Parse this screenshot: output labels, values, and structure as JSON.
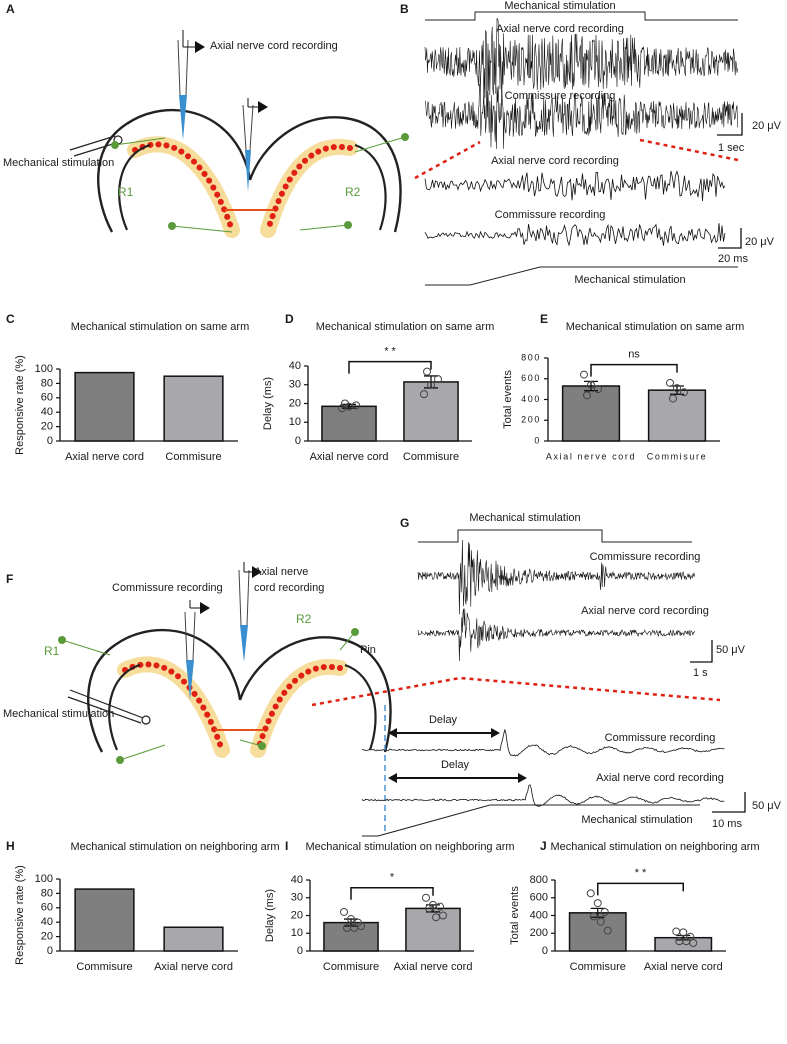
{
  "panel_A": {
    "letter": "A",
    "recording": "Axial nerve cord recording",
    "stimulation": "Mechanical stimulation",
    "arm_left": "R1",
    "arm_right": "R2"
  },
  "panel_B": {
    "letter": "B",
    "stimulation_top": "Mechanical stimulation",
    "axial": "Axial nerve cord recording",
    "commissure": "Commissure recording",
    "scale_v": "20 μV",
    "scale_t": "1 sec",
    "zoom_axial": "Axial nerve cord recording",
    "zoom_commissure": "Commissure recording",
    "zoom_scale_v": "20 μV",
    "zoom_scale_t": "20 ms",
    "stimulation_bottom": "Mechanical stimulation"
  },
  "panel_F": {
    "letter": "F",
    "commissure_recording": "Commissure recording",
    "axial_recording": [
      "Axial nerve",
      "cord recording"
    ],
    "arm_left": "R1",
    "arm_right": "R2",
    "pin": "Pin",
    "stimulation": "Mechanical stimulation"
  },
  "panel_G": {
    "letter": "G",
    "stimulation_top": "Mechanical stimulation",
    "commissure": "Commissure recording",
    "axial": "Axial nerve cord recording",
    "scale_v": "50 μV",
    "scale_t": "1 s",
    "delay_1": "Delay",
    "delay_2": "Delay",
    "zoom_commissure": "Commissure recording",
    "zoom_axial": "Axial nerve cord recording",
    "zoom_scale_v": "50 μV",
    "zoom_scale_t": "10 ms",
    "stimulation_bottom": "Mechanical stimulation"
  },
  "chart_data": [
    {
      "type": "bar",
      "letter": "C",
      "title": "Mechanical stimulation on same arm",
      "ylabel": "Responsive rate (%)",
      "categories": [
        "Axial nerve cord",
        "Commisure"
      ],
      "values": [
        95,
        90
      ],
      "colors": [
        "#7f7f7f",
        "#a8a8ac"
      ],
      "ylim": [
        0,
        100
      ],
      "yticks": [
        0,
        20,
        40,
        60,
        80,
        100
      ]
    },
    {
      "type": "bar",
      "letter": "D",
      "title": "Mechanical stimulation on same arm",
      "ylabel": "Delay (ms)",
      "categories": [
        "Axial nerve cord",
        "Commisure"
      ],
      "values": [
        18.5,
        31.5
      ],
      "errors": [
        1,
        3.2
      ],
      "points": [
        [
          17.5,
          18.3,
          19,
          20
        ],
        [
          25,
          30,
          33,
          37
        ]
      ],
      "significance": "* *",
      "colors": [
        "#7f7f7f",
        "#a8a8ac"
      ],
      "ylim": [
        0,
        40
      ],
      "yticks": [
        0,
        10,
        20,
        30,
        40
      ]
    },
    {
      "type": "bar",
      "letter": "E",
      "title": "Mechanical stimulation on same arm",
      "ylabel": "Total events",
      "categories": [
        "Axial nerve cord",
        "Commisure"
      ],
      "values": [
        530,
        490
      ],
      "errors": [
        45,
        40
      ],
      "points": [
        [
          640,
          540,
          500,
          440
        ],
        [
          560,
          510,
          470,
          410
        ]
      ],
      "significance": "ns",
      "colors": [
        "#7f7f7f",
        "#a8a8ac"
      ],
      "ylim": [
        0,
        800
      ],
      "yticks": [
        0,
        200,
        400,
        600,
        800
      ]
    },
    {
      "type": "bar",
      "letter": "H",
      "title": "Mechanical stimulation on neighboring arm",
      "ylabel": "Responsive rate (%)",
      "categories": [
        "Commisure",
        "Axial nerve cord"
      ],
      "values": [
        86,
        33
      ],
      "colors": [
        "#7f7f7f",
        "#a8a8ac"
      ],
      "ylim": [
        0,
        100
      ],
      "yticks": [
        0,
        20,
        40,
        60,
        80,
        100
      ]
    },
    {
      "type": "bar",
      "letter": "I",
      "title": "Mechanical stimulation on neighboring arm",
      "ylabel": "Delay (ms)",
      "categories": [
        "Commisure",
        "Axial nerve cord"
      ],
      "values": [
        16,
        24
      ],
      "errors": [
        2,
        2
      ],
      "points": [
        [
          22,
          18,
          16,
          13,
          13,
          14
        ],
        [
          30,
          26,
          25,
          24,
          19,
          20
        ]
      ],
      "significance": "*",
      "colors": [
        "#7f7f7f",
        "#a8a8ac"
      ],
      "ylim": [
        0,
        40
      ],
      "yticks": [
        0,
        10,
        20,
        30,
        40
      ]
    },
    {
      "type": "bar",
      "letter": "J",
      "title": "Mechanical stimulation on neighboring arm",
      "ylabel": "Total events",
      "categories": [
        "Commisure",
        "Axial nerve cord"
      ],
      "values": [
        430,
        150
      ],
      "errors": [
        50,
        25
      ],
      "points": [
        [
          650,
          540,
          440,
          390,
          330,
          230
        ],
        [
          220,
          210,
          160,
          110,
          110,
          90
        ]
      ],
      "significance": "* *",
      "colors": [
        "#7f7f7f",
        "#a8a8ac"
      ],
      "ylim": [
        0,
        800
      ],
      "yticks": [
        0,
        200,
        400,
        600,
        800
      ]
    }
  ]
}
